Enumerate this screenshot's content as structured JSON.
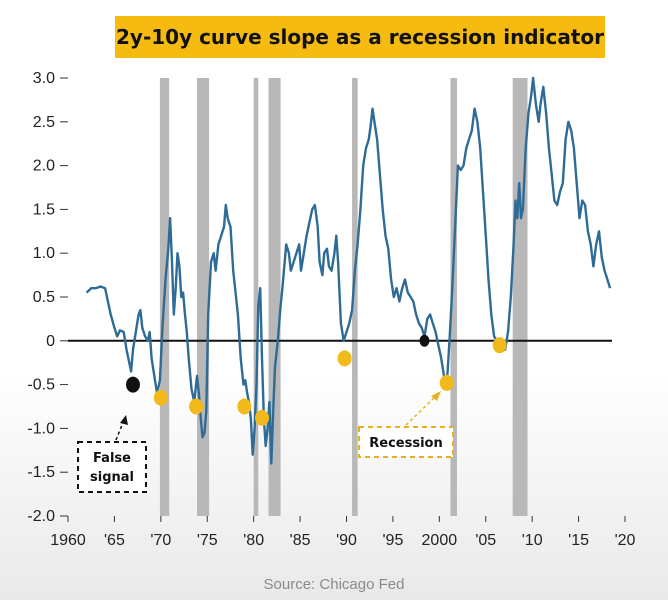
{
  "title": "2y-10y curve slope as a recession indicator",
  "source": "Source: Chicago Fed",
  "colors": {
    "title_bg": "#f6bb10",
    "line": "#2e6b97",
    "recession_band": "#b8b8b8",
    "signal_marker": "#f2b91b",
    "false_signal_marker": "#111111",
    "zero_line": "#111111"
  },
  "annotations": {
    "false_signal": [
      "False",
      "signal"
    ],
    "recession": "Recession"
  },
  "chart_data": {
    "type": "line",
    "title": "2y-10y curve slope as a recession indicator",
    "xlabel": "",
    "ylabel": "",
    "xlim": [
      1960,
      2020
    ],
    "ylim": [
      -2.0,
      3.0
    ],
    "x_ticks": [
      1960,
      1965,
      1970,
      1975,
      1980,
      1985,
      1990,
      1995,
      2000,
      2005,
      2010,
      2015,
      2020
    ],
    "x_tick_labels": [
      "1960",
      "'65",
      "'70",
      "'75",
      "'80",
      "'85",
      "'90",
      "'95",
      "2000",
      "'05",
      "'10",
      "'15",
      "'20"
    ],
    "y_ticks": [
      3.0,
      2.5,
      2.0,
      1.5,
      1.0,
      0.5,
      0,
      -0.5,
      -1.0,
      -1.5,
      -2.0
    ],
    "y_tick_labels": [
      "3.0",
      "2.5",
      "2.0",
      "1.5",
      "1.0",
      "0.5",
      "0",
      "-0.5",
      "-1.0",
      "-1.5",
      "-2.0"
    ],
    "grid": false,
    "reference_line_y": 0,
    "recession_bands": [
      [
        1969.9,
        1970.9
      ],
      [
        1973.9,
        1975.2
      ],
      [
        1980.0,
        1980.5
      ],
      [
        1981.6,
        1982.9
      ],
      [
        1990.6,
        1991.2
      ],
      [
        2001.2,
        2001.9
      ],
      [
        2007.9,
        2009.5
      ]
    ],
    "series": [
      {
        "points": [
          [
            1962.0,
            0.55
          ],
          [
            1962.5,
            0.6
          ],
          [
            1963.0,
            0.6
          ],
          [
            1963.5,
            0.62
          ],
          [
            1964.0,
            0.6
          ],
          [
            1964.3,
            0.45
          ],
          [
            1964.6,
            0.3
          ],
          [
            1965.0,
            0.15
          ],
          [
            1965.3,
            0.05
          ],
          [
            1965.6,
            0.12
          ],
          [
            1966.0,
            0.1
          ],
          [
            1966.3,
            -0.1
          ],
          [
            1966.6,
            -0.25
          ],
          [
            1966.8,
            -0.35
          ],
          [
            1967.0,
            -0.1
          ],
          [
            1967.3,
            0.1
          ],
          [
            1967.6,
            0.3
          ],
          [
            1967.8,
            0.35
          ],
          [
            1968.0,
            0.15
          ],
          [
            1968.3,
            0.05
          ],
          [
            1968.6,
            0.0
          ],
          [
            1968.8,
            0.1
          ],
          [
            1969.0,
            -0.2
          ],
          [
            1969.3,
            -0.4
          ],
          [
            1969.6,
            -0.6
          ],
          [
            1969.9,
            -0.45
          ],
          [
            1970.2,
            0.2
          ],
          [
            1970.5,
            0.7
          ],
          [
            1970.8,
            1.05
          ],
          [
            1971.0,
            1.4
          ],
          [
            1971.2,
            0.9
          ],
          [
            1971.4,
            0.3
          ],
          [
            1971.6,
            0.6
          ],
          [
            1971.8,
            1.0
          ],
          [
            1972.0,
            0.85
          ],
          [
            1972.2,
            0.5
          ],
          [
            1972.4,
            0.55
          ],
          [
            1972.6,
            0.3
          ],
          [
            1972.8,
            0.1
          ],
          [
            1973.0,
            -0.2
          ],
          [
            1973.3,
            -0.55
          ],
          [
            1973.6,
            -0.7
          ],
          [
            1973.9,
            -0.4
          ],
          [
            1974.1,
            -0.6
          ],
          [
            1974.3,
            -0.9
          ],
          [
            1974.5,
            -1.1
          ],
          [
            1974.7,
            -1.05
          ],
          [
            1974.9,
            -0.8
          ],
          [
            1975.1,
            0.3
          ],
          [
            1975.4,
            0.9
          ],
          [
            1975.7,
            1.0
          ],
          [
            1975.9,
            0.8
          ],
          [
            1976.2,
            1.1
          ],
          [
            1976.5,
            1.2
          ],
          [
            1976.8,
            1.3
          ],
          [
            1977.0,
            1.55
          ],
          [
            1977.2,
            1.4
          ],
          [
            1977.5,
            1.3
          ],
          [
            1977.8,
            0.8
          ],
          [
            1978.0,
            0.6
          ],
          [
            1978.3,
            0.3
          ],
          [
            1978.6,
            -0.2
          ],
          [
            1978.9,
            -0.5
          ],
          [
            1979.1,
            -0.45
          ],
          [
            1979.3,
            -0.6
          ],
          [
            1979.5,
            -0.7
          ],
          [
            1979.7,
            -0.9
          ],
          [
            1979.9,
            -1.3
          ],
          [
            1980.1,
            -1.0
          ],
          [
            1980.3,
            -0.5
          ],
          [
            1980.5,
            0.4
          ],
          [
            1980.7,
            0.6
          ],
          [
            1980.9,
            -0.2
          ],
          [
            1981.1,
            -0.9
          ],
          [
            1981.3,
            -1.2
          ],
          [
            1981.5,
            -1.0
          ],
          [
            1981.7,
            -0.7
          ],
          [
            1981.9,
            -1.4
          ],
          [
            1982.1,
            -0.8
          ],
          [
            1982.3,
            -0.3
          ],
          [
            1982.6,
            0.0
          ],
          [
            1982.9,
            0.4
          ],
          [
            1983.1,
            0.6
          ],
          [
            1983.3,
            0.85
          ],
          [
            1983.5,
            1.1
          ],
          [
            1983.8,
            1.0
          ],
          [
            1984.0,
            0.8
          ],
          [
            1984.3,
            0.9
          ],
          [
            1984.6,
            1.0
          ],
          [
            1984.9,
            1.1
          ],
          [
            1985.1,
            0.8
          ],
          [
            1985.4,
            1.0
          ],
          [
            1985.7,
            1.2
          ],
          [
            1986.0,
            1.35
          ],
          [
            1986.3,
            1.5
          ],
          [
            1986.6,
            1.55
          ],
          [
            1986.9,
            1.3
          ],
          [
            1987.1,
            0.9
          ],
          [
            1987.4,
            0.75
          ],
          [
            1987.6,
            1.0
          ],
          [
            1987.9,
            1.05
          ],
          [
            1988.1,
            0.85
          ],
          [
            1988.4,
            0.8
          ],
          [
            1988.7,
            1.0
          ],
          [
            1988.9,
            1.2
          ],
          [
            1989.1,
            0.9
          ],
          [
            1989.4,
            0.2
          ],
          [
            1989.7,
            0.0
          ],
          [
            1990.0,
            0.1
          ],
          [
            1990.3,
            0.2
          ],
          [
            1990.6,
            0.35
          ],
          [
            1990.9,
            0.8
          ],
          [
            1991.2,
            1.1
          ],
          [
            1991.5,
            1.5
          ],
          [
            1991.8,
            2.0
          ],
          [
            1992.1,
            2.2
          ],
          [
            1992.4,
            2.3
          ],
          [
            1992.6,
            2.45
          ],
          [
            1992.8,
            2.65
          ],
          [
            1993.0,
            2.5
          ],
          [
            1993.3,
            2.3
          ],
          [
            1993.6,
            1.9
          ],
          [
            1993.9,
            1.5
          ],
          [
            1994.2,
            1.2
          ],
          [
            1994.5,
            1.05
          ],
          [
            1994.8,
            0.7
          ],
          [
            1995.1,
            0.5
          ],
          [
            1995.4,
            0.6
          ],
          [
            1995.7,
            0.45
          ],
          [
            1996.0,
            0.6
          ],
          [
            1996.3,
            0.7
          ],
          [
            1996.6,
            0.55
          ],
          [
            1996.9,
            0.5
          ],
          [
            1997.2,
            0.45
          ],
          [
            1997.5,
            0.3
          ],
          [
            1997.8,
            0.2
          ],
          [
            1998.1,
            0.15
          ],
          [
            1998.4,
            0.05
          ],
          [
            1998.7,
            0.25
          ],
          [
            1999.0,
            0.3
          ],
          [
            1999.3,
            0.2
          ],
          [
            1999.6,
            0.1
          ],
          [
            1999.9,
            -0.05
          ],
          [
            2000.2,
            -0.2
          ],
          [
            2000.5,
            -0.4
          ],
          [
            2000.8,
            -0.5
          ],
          [
            2001.1,
            0.0
          ],
          [
            2001.4,
            0.6
          ],
          [
            2001.7,
            1.3
          ],
          [
            2002.0,
            2.0
          ],
          [
            2002.3,
            1.95
          ],
          [
            2002.6,
            2.0
          ],
          [
            2002.9,
            2.2
          ],
          [
            2003.2,
            2.3
          ],
          [
            2003.5,
            2.4
          ],
          [
            2003.8,
            2.65
          ],
          [
            2004.1,
            2.5
          ],
          [
            2004.4,
            2.2
          ],
          [
            2004.7,
            1.7
          ],
          [
            2005.0,
            1.2
          ],
          [
            2005.3,
            0.7
          ],
          [
            2005.6,
            0.3
          ],
          [
            2005.9,
            0.05
          ],
          [
            2006.2,
            0.0
          ],
          [
            2006.5,
            -0.1
          ],
          [
            2006.8,
            -0.05
          ],
          [
            2007.1,
            -0.1
          ],
          [
            2007.4,
            0.1
          ],
          [
            2007.7,
            0.5
          ],
          [
            2008.0,
            1.1
          ],
          [
            2008.2,
            1.6
          ],
          [
            2008.4,
            1.4
          ],
          [
            2008.6,
            1.8
          ],
          [
            2008.8,
            1.4
          ],
          [
            2009.0,
            1.5
          ],
          [
            2009.3,
            2.2
          ],
          [
            2009.6,
            2.6
          ],
          [
            2009.9,
            2.8
          ],
          [
            2010.1,
            3.0
          ],
          [
            2010.4,
            2.7
          ],
          [
            2010.7,
            2.5
          ],
          [
            2010.9,
            2.7
          ],
          [
            2011.2,
            2.9
          ],
          [
            2011.5,
            2.6
          ],
          [
            2011.8,
            2.2
          ],
          [
            2012.1,
            1.9
          ],
          [
            2012.4,
            1.6
          ],
          [
            2012.7,
            1.55
          ],
          [
            2013.0,
            1.7
          ],
          [
            2013.3,
            1.8
          ],
          [
            2013.6,
            2.3
          ],
          [
            2013.9,
            2.5
          ],
          [
            2014.2,
            2.4
          ],
          [
            2014.5,
            2.2
          ],
          [
            2014.8,
            1.8
          ],
          [
            2015.1,
            1.4
          ],
          [
            2015.4,
            1.6
          ],
          [
            2015.7,
            1.55
          ],
          [
            2016.0,
            1.25
          ],
          [
            2016.3,
            1.1
          ],
          [
            2016.6,
            0.85
          ],
          [
            2016.9,
            1.1
          ],
          [
            2017.2,
            1.25
          ],
          [
            2017.5,
            0.95
          ],
          [
            2017.8,
            0.8
          ],
          [
            2018.1,
            0.7
          ],
          [
            2018.4,
            0.6
          ]
        ]
      }
    ],
    "markers": [
      {
        "x": 1967.0,
        "y": -0.5,
        "kind": "false_signal"
      },
      {
        "x": 1970.0,
        "y": -0.65,
        "kind": "signal"
      },
      {
        "x": 1973.8,
        "y": -0.75,
        "kind": "signal"
      },
      {
        "x": 1979.0,
        "y": -0.75,
        "kind": "signal"
      },
      {
        "x": 1980.9,
        "y": -0.88,
        "kind": "signal"
      },
      {
        "x": 1989.8,
        "y": -0.2,
        "kind": "signal"
      },
      {
        "x": 1998.4,
        "y": 0.0,
        "kind": "false_signal"
      },
      {
        "x": 2000.8,
        "y": -0.48,
        "kind": "signal"
      },
      {
        "x": 2006.5,
        "y": -0.05,
        "kind": "signal"
      }
    ]
  }
}
